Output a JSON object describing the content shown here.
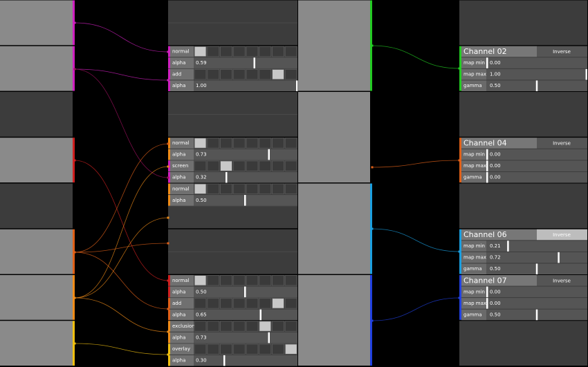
{
  "layers": [
    [
      {
        "mode": "normal"
      },
      {
        "label": "alpha",
        "value": 0.59
      },
      {
        "mode": "add"
      },
      {
        "label": "alpha",
        "value": 1,
        "value_label": "1.00"
      }
    ],
    [
      {
        "mode": "normal"
      },
      {
        "label": "alpha",
        "value": 0.73
      },
      {
        "mode": "screen"
      },
      {
        "label": "alpha",
        "value": 0.32
      }
    ],
    [
      {
        "mode": "normal"
      },
      {
        "label": "alpha",
        "value": 0.5,
        "value_label": "0.50"
      }
    ],
    [
      {
        "mode": "normal"
      },
      {
        "label": "alpha",
        "value": 0.5,
        "value_label": "0.50"
      },
      {
        "mode": "add"
      },
      {
        "label": "alpha",
        "value": 0.65
      },
      {
        "mode": "exclusion"
      },
      {
        "label": "alpha",
        "value": 0.73
      },
      {
        "mode": "overlay"
      },
      {
        "label": "alpha",
        "value": 0.3,
        "value_label": "0.30"
      }
    ]
  ],
  "channels": [
    {
      "title": "Channel 02",
      "button": "Inverse",
      "params": [
        {
          "label": "map min",
          "value": 0,
          "value_label": "0.00"
        },
        {
          "label": "map max",
          "value": 1,
          "value_label": "1.00"
        },
        {
          "label": "gamma",
          "value": 0.5,
          "value_label": "0.50"
        }
      ]
    },
    {
      "title": "Channel 04",
      "button": "Inverse",
      "params": [
        {
          "label": "map min",
          "value": 0,
          "value_label": "0.00"
        },
        {
          "label": "map max",
          "value": 0,
          "value_label": "0.00"
        },
        {
          "label": "gamma",
          "value": 0,
          "value_label": "0.00"
        }
      ]
    },
    {
      "title": "Channel 06",
      "button": "Inverse",
      "params": [
        {
          "label": "map min",
          "value": 0.21
        },
        {
          "label": "map max",
          "value": 0.72
        },
        {
          "label": "gamma",
          "value": 0.5,
          "value_label": "0.50"
        }
      ]
    },
    {
      "title": "Channel 07",
      "button": "Inverse",
      "params": [
        {
          "label": "map min",
          "value": 0,
          "value_label": "0.00"
        },
        {
          "label": "map max",
          "value": 0,
          "value_label": "0.00"
        },
        {
          "label": "gamma",
          "value": 0.5,
          "value_label": "0.50"
        }
      ]
    }
  ]
}
